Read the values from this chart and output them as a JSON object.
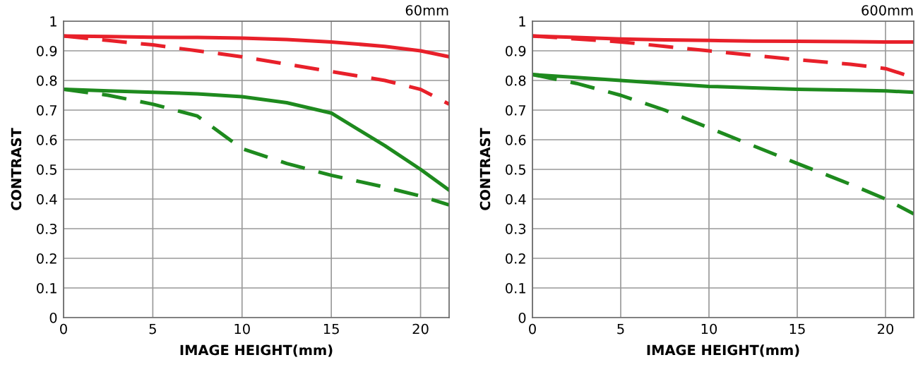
{
  "chart_data": [
    {
      "type": "line",
      "title": "60mm",
      "xlabel": "IMAGE HEIGHT(mm)",
      "ylabel": "CONTRAST",
      "xlim": [
        0,
        21.6
      ],
      "ylim": [
        0,
        1
      ],
      "xticks": [
        0,
        5,
        10,
        15,
        20
      ],
      "yticks": [
        0,
        0.1,
        0.2,
        0.3,
        0.4,
        0.5,
        0.6,
        0.7,
        0.8,
        0.9,
        1
      ],
      "grid": true,
      "x": [
        0,
        2.5,
        5,
        7.5,
        10,
        12.5,
        15,
        18,
        20,
        21.6
      ],
      "series": [
        {
          "color": "#e8202a",
          "line_style": "solid",
          "values": [
            0.95,
            0.948,
            0.946,
            0.945,
            0.943,
            0.938,
            0.93,
            0.915,
            0.9,
            0.88
          ]
        },
        {
          "color": "#e8202a",
          "line_style": "dashed",
          "values": [
            0.95,
            0.935,
            0.92,
            0.9,
            0.88,
            0.855,
            0.83,
            0.8,
            0.77,
            0.72
          ]
        },
        {
          "color": "#1e8a1e",
          "line_style": "solid",
          "values": [
            0.77,
            0.765,
            0.76,
            0.755,
            0.745,
            0.725,
            0.69,
            0.58,
            0.5,
            0.43
          ]
        },
        {
          "color": "#1e8a1e",
          "line_style": "dashed",
          "values": [
            0.77,
            0.75,
            0.72,
            0.68,
            0.57,
            0.52,
            0.48,
            0.44,
            0.41,
            0.38
          ]
        }
      ]
    },
    {
      "type": "line",
      "title": "600mm",
      "xlabel": "IMAGE HEIGHT(mm)",
      "ylabel": "CONTRAST",
      "xlim": [
        0,
        21.6
      ],
      "ylim": [
        0,
        1
      ],
      "xticks": [
        0,
        5,
        10,
        15,
        20
      ],
      "yticks": [
        0,
        0.1,
        0.2,
        0.3,
        0.4,
        0.5,
        0.6,
        0.7,
        0.8,
        0.9,
        1
      ],
      "grid": true,
      "x": [
        0,
        2.5,
        5,
        7.5,
        10,
        12.5,
        15,
        18,
        20,
        21.6
      ],
      "series": [
        {
          "color": "#e8202a",
          "line_style": "solid",
          "values": [
            0.95,
            0.945,
            0.94,
            0.937,
            0.935,
            0.933,
            0.932,
            0.931,
            0.93,
            0.93
          ]
        },
        {
          "color": "#e8202a",
          "line_style": "dashed",
          "values": [
            0.95,
            0.94,
            0.93,
            0.915,
            0.9,
            0.885,
            0.87,
            0.855,
            0.84,
            0.81
          ]
        },
        {
          "color": "#1e8a1e",
          "line_style": "solid",
          "values": [
            0.82,
            0.81,
            0.8,
            0.79,
            0.78,
            0.775,
            0.77,
            0.767,
            0.765,
            0.76
          ]
        },
        {
          "color": "#1e8a1e",
          "line_style": "dashed",
          "values": [
            0.82,
            0.79,
            0.75,
            0.7,
            0.64,
            0.58,
            0.52,
            0.45,
            0.4,
            0.35
          ]
        }
      ]
    }
  ]
}
